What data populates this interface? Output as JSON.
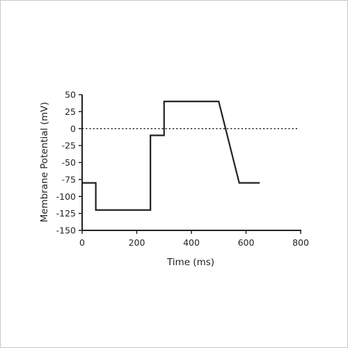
{
  "chart_data": {
    "type": "line",
    "xlabel": "Time (ms)",
    "ylabel": "Membrane Potential (mV)",
    "xlim": [
      0,
      800
    ],
    "ylim": [
      -150,
      50
    ],
    "x_ticks": [
      0,
      200,
      400,
      600,
      800
    ],
    "y_ticks": [
      50,
      25,
      0,
      -25,
      -50,
      -75,
      -100,
      -125,
      -150
    ],
    "grid": false,
    "legend": "none",
    "series": [
      {
        "x": [
          0,
          50,
          50,
          250,
          250,
          300,
          300,
          500,
          575,
          650
        ],
        "y": [
          -80,
          -80,
          -120,
          -120,
          -10,
          -10,
          40,
          40,
          -80,
          -80
        ]
      }
    ],
    "reference_lines": [
      {
        "orientation": "horizontal",
        "y": 0,
        "style": "dotted"
      }
    ],
    "colors": {
      "line": "#222222",
      "axis": "#222222",
      "text": "#222222",
      "border": "#c9c9c9"
    }
  }
}
